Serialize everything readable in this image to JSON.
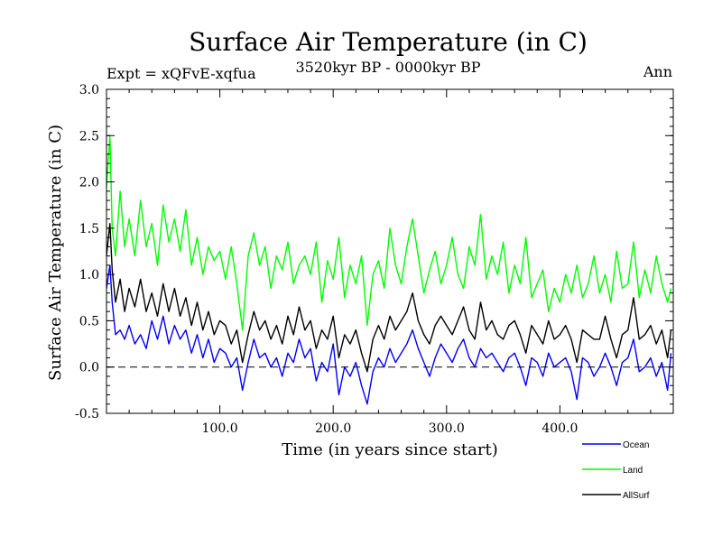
{
  "chart_data": {
    "type": "line",
    "title": "Surface Air Temperature (in C)",
    "subtitle": "3520kyr BP - 0000kyr BP",
    "expt_label": "Expt = xQFvE-xqfua",
    "season_label": "Ann",
    "xlabel": "Time (in years since start)",
    "ylabel": "Surface Air Temperature (in C)",
    "xlim": [
      0,
      500
    ],
    "ylim": [
      -0.5,
      3.0
    ],
    "xticks": [
      100,
      200,
      300,
      400
    ],
    "xtick_labels": [
      "100.0",
      "200.0",
      "300.0",
      "400.0"
    ],
    "yticks": [
      -0.5,
      0.0,
      0.5,
      1.0,
      1.5,
      2.0,
      2.5,
      3.0
    ],
    "ytick_labels": [
      "-0.5",
      "0.0",
      "0.5",
      "1.0",
      "1.5",
      "2.0",
      "2.5",
      "3.0"
    ],
    "reference_line": 0.0,
    "series": [
      {
        "name": "Ocean",
        "color": "#0000ff",
        "x": [
          0,
          3,
          5,
          8,
          12,
          16,
          20,
          25,
          30,
          35,
          40,
          45,
          50,
          55,
          60,
          65,
          70,
          75,
          80,
          85,
          90,
          95,
          100,
          105,
          110,
          115,
          120,
          125,
          130,
          135,
          140,
          145,
          150,
          155,
          160,
          165,
          170,
          175,
          180,
          185,
          190,
          195,
          200,
          205,
          210,
          215,
          220,
          225,
          230,
          235,
          240,
          245,
          250,
          255,
          260,
          265,
          270,
          275,
          280,
          285,
          290,
          295,
          300,
          305,
          310,
          315,
          320,
          325,
          330,
          335,
          340,
          345,
          350,
          355,
          360,
          365,
          370,
          375,
          380,
          385,
          390,
          395,
          400,
          405,
          410,
          415,
          420,
          425,
          430,
          435,
          440,
          445,
          450,
          455,
          460,
          465,
          470,
          475,
          480,
          485,
          490,
          495,
          498
        ],
        "y": [
          0.85,
          1.1,
          0.7,
          0.35,
          0.4,
          0.3,
          0.45,
          0.25,
          0.35,
          0.2,
          0.5,
          0.3,
          0.55,
          0.25,
          0.45,
          0.3,
          0.4,
          0.15,
          0.35,
          0.1,
          0.3,
          0.05,
          0.2,
          0.15,
          0.0,
          0.1,
          -0.25,
          0.05,
          0.3,
          0.1,
          0.15,
          0.0,
          0.1,
          -0.1,
          0.15,
          0.05,
          0.3,
          0.1,
          0.2,
          -0.15,
          0.05,
          -0.05,
          0.25,
          -0.3,
          0.0,
          -0.1,
          0.05,
          -0.2,
          -0.4,
          -0.05,
          0.1,
          0.0,
          0.2,
          0.05,
          0.15,
          0.25,
          0.4,
          0.2,
          0.05,
          -0.1,
          0.1,
          0.25,
          0.15,
          0.05,
          0.2,
          0.3,
          0.1,
          0.0,
          0.2,
          0.1,
          0.15,
          0.05,
          -0.05,
          0.1,
          0.15,
          0.0,
          -0.2,
          0.1,
          0.05,
          -0.1,
          0.15,
          0.0,
          0.05,
          0.1,
          -0.05,
          -0.35,
          0.1,
          0.05,
          -0.1,
          0.0,
          0.15,
          0.0,
          -0.2,
          0.05,
          0.1,
          0.3,
          -0.05,
          0.0,
          0.1,
          -0.1,
          0.05,
          -0.25,
          0.15
        ]
      },
      {
        "name": "Land",
        "color": "#00ff00",
        "x": [
          0,
          3,
          5,
          8,
          12,
          16,
          20,
          25,
          30,
          35,
          40,
          45,
          50,
          55,
          60,
          65,
          70,
          75,
          80,
          85,
          90,
          95,
          100,
          105,
          110,
          115,
          120,
          125,
          130,
          135,
          140,
          145,
          150,
          155,
          160,
          165,
          170,
          175,
          180,
          185,
          190,
          195,
          200,
          205,
          210,
          215,
          220,
          225,
          230,
          235,
          240,
          245,
          250,
          255,
          260,
          265,
          270,
          275,
          280,
          285,
          290,
          295,
          300,
          305,
          310,
          315,
          320,
          325,
          330,
          335,
          340,
          345,
          350,
          355,
          360,
          365,
          370,
          375,
          380,
          385,
          390,
          395,
          400,
          405,
          410,
          415,
          420,
          425,
          430,
          435,
          440,
          445,
          450,
          455,
          460,
          465,
          470,
          475,
          480,
          485,
          490,
          495,
          498
        ],
        "y": [
          1.95,
          2.5,
          1.5,
          1.2,
          1.9,
          1.3,
          1.6,
          1.2,
          1.8,
          1.3,
          1.55,
          1.1,
          1.75,
          1.35,
          1.6,
          1.25,
          1.7,
          1.1,
          1.4,
          1.0,
          1.3,
          1.15,
          1.25,
          0.95,
          1.3,
          0.9,
          0.4,
          1.2,
          1.45,
          1.1,
          1.3,
          0.85,
          1.2,
          1.05,
          1.35,
          0.9,
          1.1,
          1.2,
          1.0,
          1.35,
          0.7,
          1.15,
          0.95,
          1.4,
          0.75,
          1.1,
          0.9,
          1.2,
          0.45,
          1.0,
          1.15,
          0.85,
          1.5,
          1.1,
          0.9,
          1.3,
          1.6,
          1.2,
          0.8,
          1.05,
          1.25,
          0.9,
          1.1,
          1.4,
          1.0,
          0.85,
          1.3,
          1.1,
          1.65,
          0.95,
          1.2,
          1.0,
          1.35,
          0.8,
          1.1,
          0.9,
          1.4,
          0.75,
          0.9,
          1.05,
          0.6,
          0.85,
          0.7,
          1.0,
          0.8,
          1.1,
          0.75,
          0.9,
          1.2,
          0.8,
          1.0,
          0.7,
          1.25,
          0.85,
          0.9,
          1.35,
          0.75,
          1.05,
          0.8,
          1.2,
          0.9,
          0.7,
          0.85
        ]
      },
      {
        "name": "AllSurf",
        "color": "#000000",
        "x": [
          0,
          3,
          5,
          8,
          12,
          16,
          20,
          25,
          30,
          35,
          40,
          45,
          50,
          55,
          60,
          65,
          70,
          75,
          80,
          85,
          90,
          95,
          100,
          105,
          110,
          115,
          120,
          125,
          130,
          135,
          140,
          145,
          150,
          155,
          160,
          165,
          170,
          175,
          180,
          185,
          190,
          195,
          200,
          205,
          210,
          215,
          220,
          225,
          230,
          235,
          240,
          245,
          250,
          255,
          260,
          265,
          270,
          275,
          280,
          285,
          290,
          295,
          300,
          305,
          310,
          315,
          320,
          325,
          330,
          335,
          340,
          345,
          350,
          355,
          360,
          365,
          370,
          375,
          380,
          385,
          390,
          395,
          400,
          405,
          410,
          415,
          420,
          425,
          430,
          435,
          440,
          445,
          450,
          455,
          460,
          465,
          470,
          475,
          480,
          485,
          490,
          495,
          498
        ],
        "y": [
          1.2,
          1.55,
          1.05,
          0.7,
          0.95,
          0.6,
          0.85,
          0.65,
          0.95,
          0.6,
          0.8,
          0.55,
          0.9,
          0.6,
          0.85,
          0.55,
          0.75,
          0.45,
          0.7,
          0.4,
          0.6,
          0.35,
          0.5,
          0.45,
          0.25,
          0.4,
          0.05,
          0.35,
          0.6,
          0.4,
          0.5,
          0.3,
          0.45,
          0.25,
          0.55,
          0.35,
          0.65,
          0.4,
          0.5,
          0.2,
          0.4,
          0.3,
          0.55,
          0.1,
          0.35,
          0.25,
          0.4,
          0.15,
          -0.05,
          0.3,
          0.45,
          0.3,
          0.55,
          0.4,
          0.5,
          0.6,
          0.8,
          0.5,
          0.35,
          0.25,
          0.45,
          0.55,
          0.45,
          0.35,
          0.5,
          0.65,
          0.4,
          0.3,
          0.7,
          0.4,
          0.5,
          0.35,
          0.3,
          0.45,
          0.5,
          0.35,
          0.15,
          0.45,
          0.35,
          0.25,
          0.5,
          0.3,
          0.35,
          0.45,
          0.3,
          0.05,
          0.4,
          0.35,
          0.3,
          0.3,
          0.55,
          0.3,
          0.1,
          0.35,
          0.4,
          0.75,
          0.3,
          0.35,
          0.45,
          0.25,
          0.4,
          0.1,
          0.4
        ]
      }
    ],
    "legend": [
      {
        "label": "Ocean",
        "color": "#0000ff"
      },
      {
        "label": "Land",
        "color": "#00ff00"
      },
      {
        "label": "AllSurf",
        "color": "#000000"
      }
    ]
  }
}
